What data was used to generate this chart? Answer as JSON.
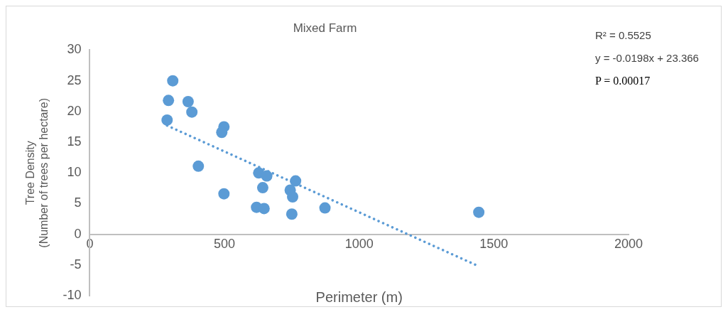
{
  "chart_data": {
    "type": "scatter",
    "title": "Mixed Farm",
    "xlabel": "Perimeter (m)",
    "ylabel": "Tree Density\n(Number of trees per hectare)",
    "xlim": [
      0,
      2000
    ],
    "xticks": [
      0,
      500,
      1000,
      1500,
      2000
    ],
    "ylim": [
      -10,
      30
    ],
    "yticks": [
      -10,
      -5,
      0,
      5,
      10,
      15,
      20,
      25,
      30
    ],
    "grid": false,
    "legend": false,
    "marker": "circle",
    "annotations": [
      "R² = 0.5525",
      "y = -0.0198x + 23.366",
      "P = 0.00017"
    ],
    "series": [
      {
        "color": "#5b9bd5",
        "x": [
          308,
          292,
          365,
          379,
          287,
          498,
          490,
          403,
          627,
          657,
          764,
          642,
          744,
          753,
          498,
          619,
          647,
          750,
          873,
          1444
        ],
        "values": [
          25.0,
          21.8,
          21.6,
          19.9,
          18.6,
          17.5,
          16.6,
          11.1,
          10.0,
          9.5,
          8.7,
          7.6,
          7.2,
          6.1,
          6.6,
          4.4,
          4.2,
          3.3,
          4.3,
          3.6
        ]
      },
      {
        "type": "line",
        "color": "#5b9bd5",
        "marker": "none",
        "line_style": "dotted",
        "x": [
          287,
          1444
        ],
        "values": [
          17.7,
          -5.2
        ]
      }
    ]
  }
}
